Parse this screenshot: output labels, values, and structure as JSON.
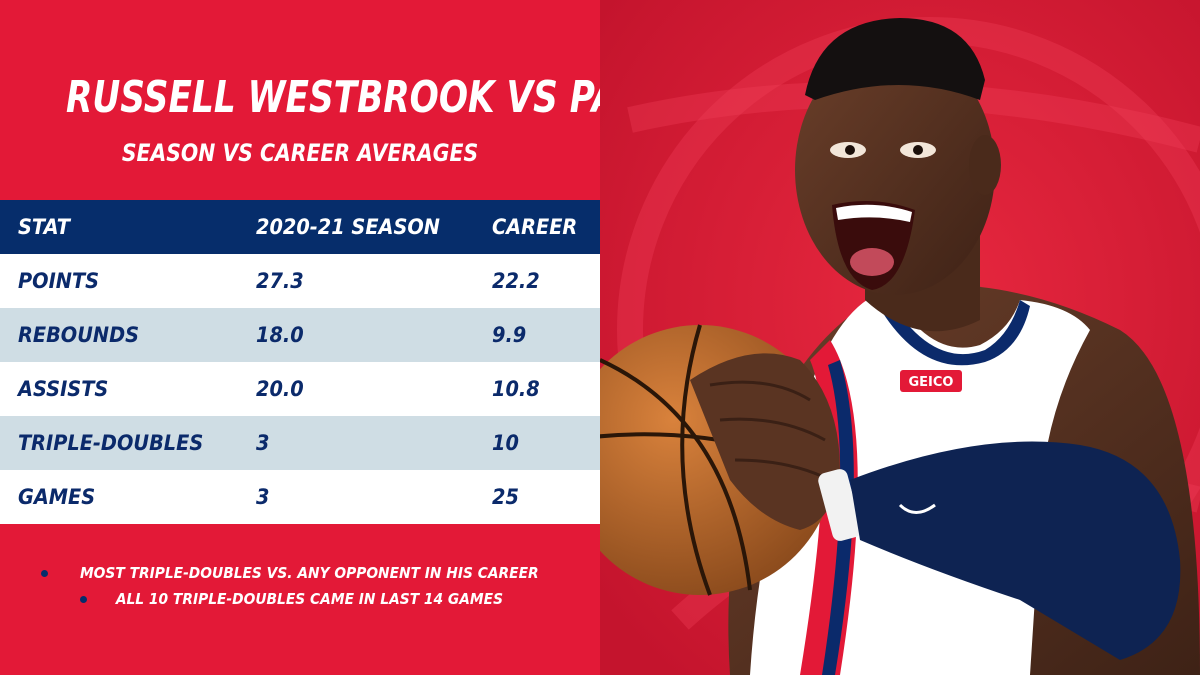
{
  "graphic": {
    "title": "RUSSELL WESTBROOK VS PACERS",
    "subtitle": "SEASON VS CAREER AVERAGES"
  },
  "table": {
    "headers": [
      "STAT",
      "2020-21 SEASON",
      "CAREER"
    ],
    "rows": [
      [
        "POINTS",
        "27.3",
        "22.2"
      ],
      [
        "REBOUNDS",
        "18.0",
        "9.9"
      ],
      [
        "ASSISTS",
        "20.0",
        "10.8"
      ],
      [
        "TRIPLE-DOUBLES",
        "3",
        "10"
      ],
      [
        "GAMES",
        "3",
        "25"
      ]
    ]
  },
  "notes": [
    "MOST TRIPLE-DOUBLES VS. ANY OPPONENT IN HIS CAREER",
    "ALL 10 TRIPLE-DOUBLES CAME IN LAST 14 GAMES"
  ],
  "photo": {
    "jersey_sponsor": "GEICO"
  },
  "colors": {
    "red": "#e31937",
    "navy": "#062d6b",
    "light_row": "#cfdde4",
    "white": "#ffffff"
  }
}
